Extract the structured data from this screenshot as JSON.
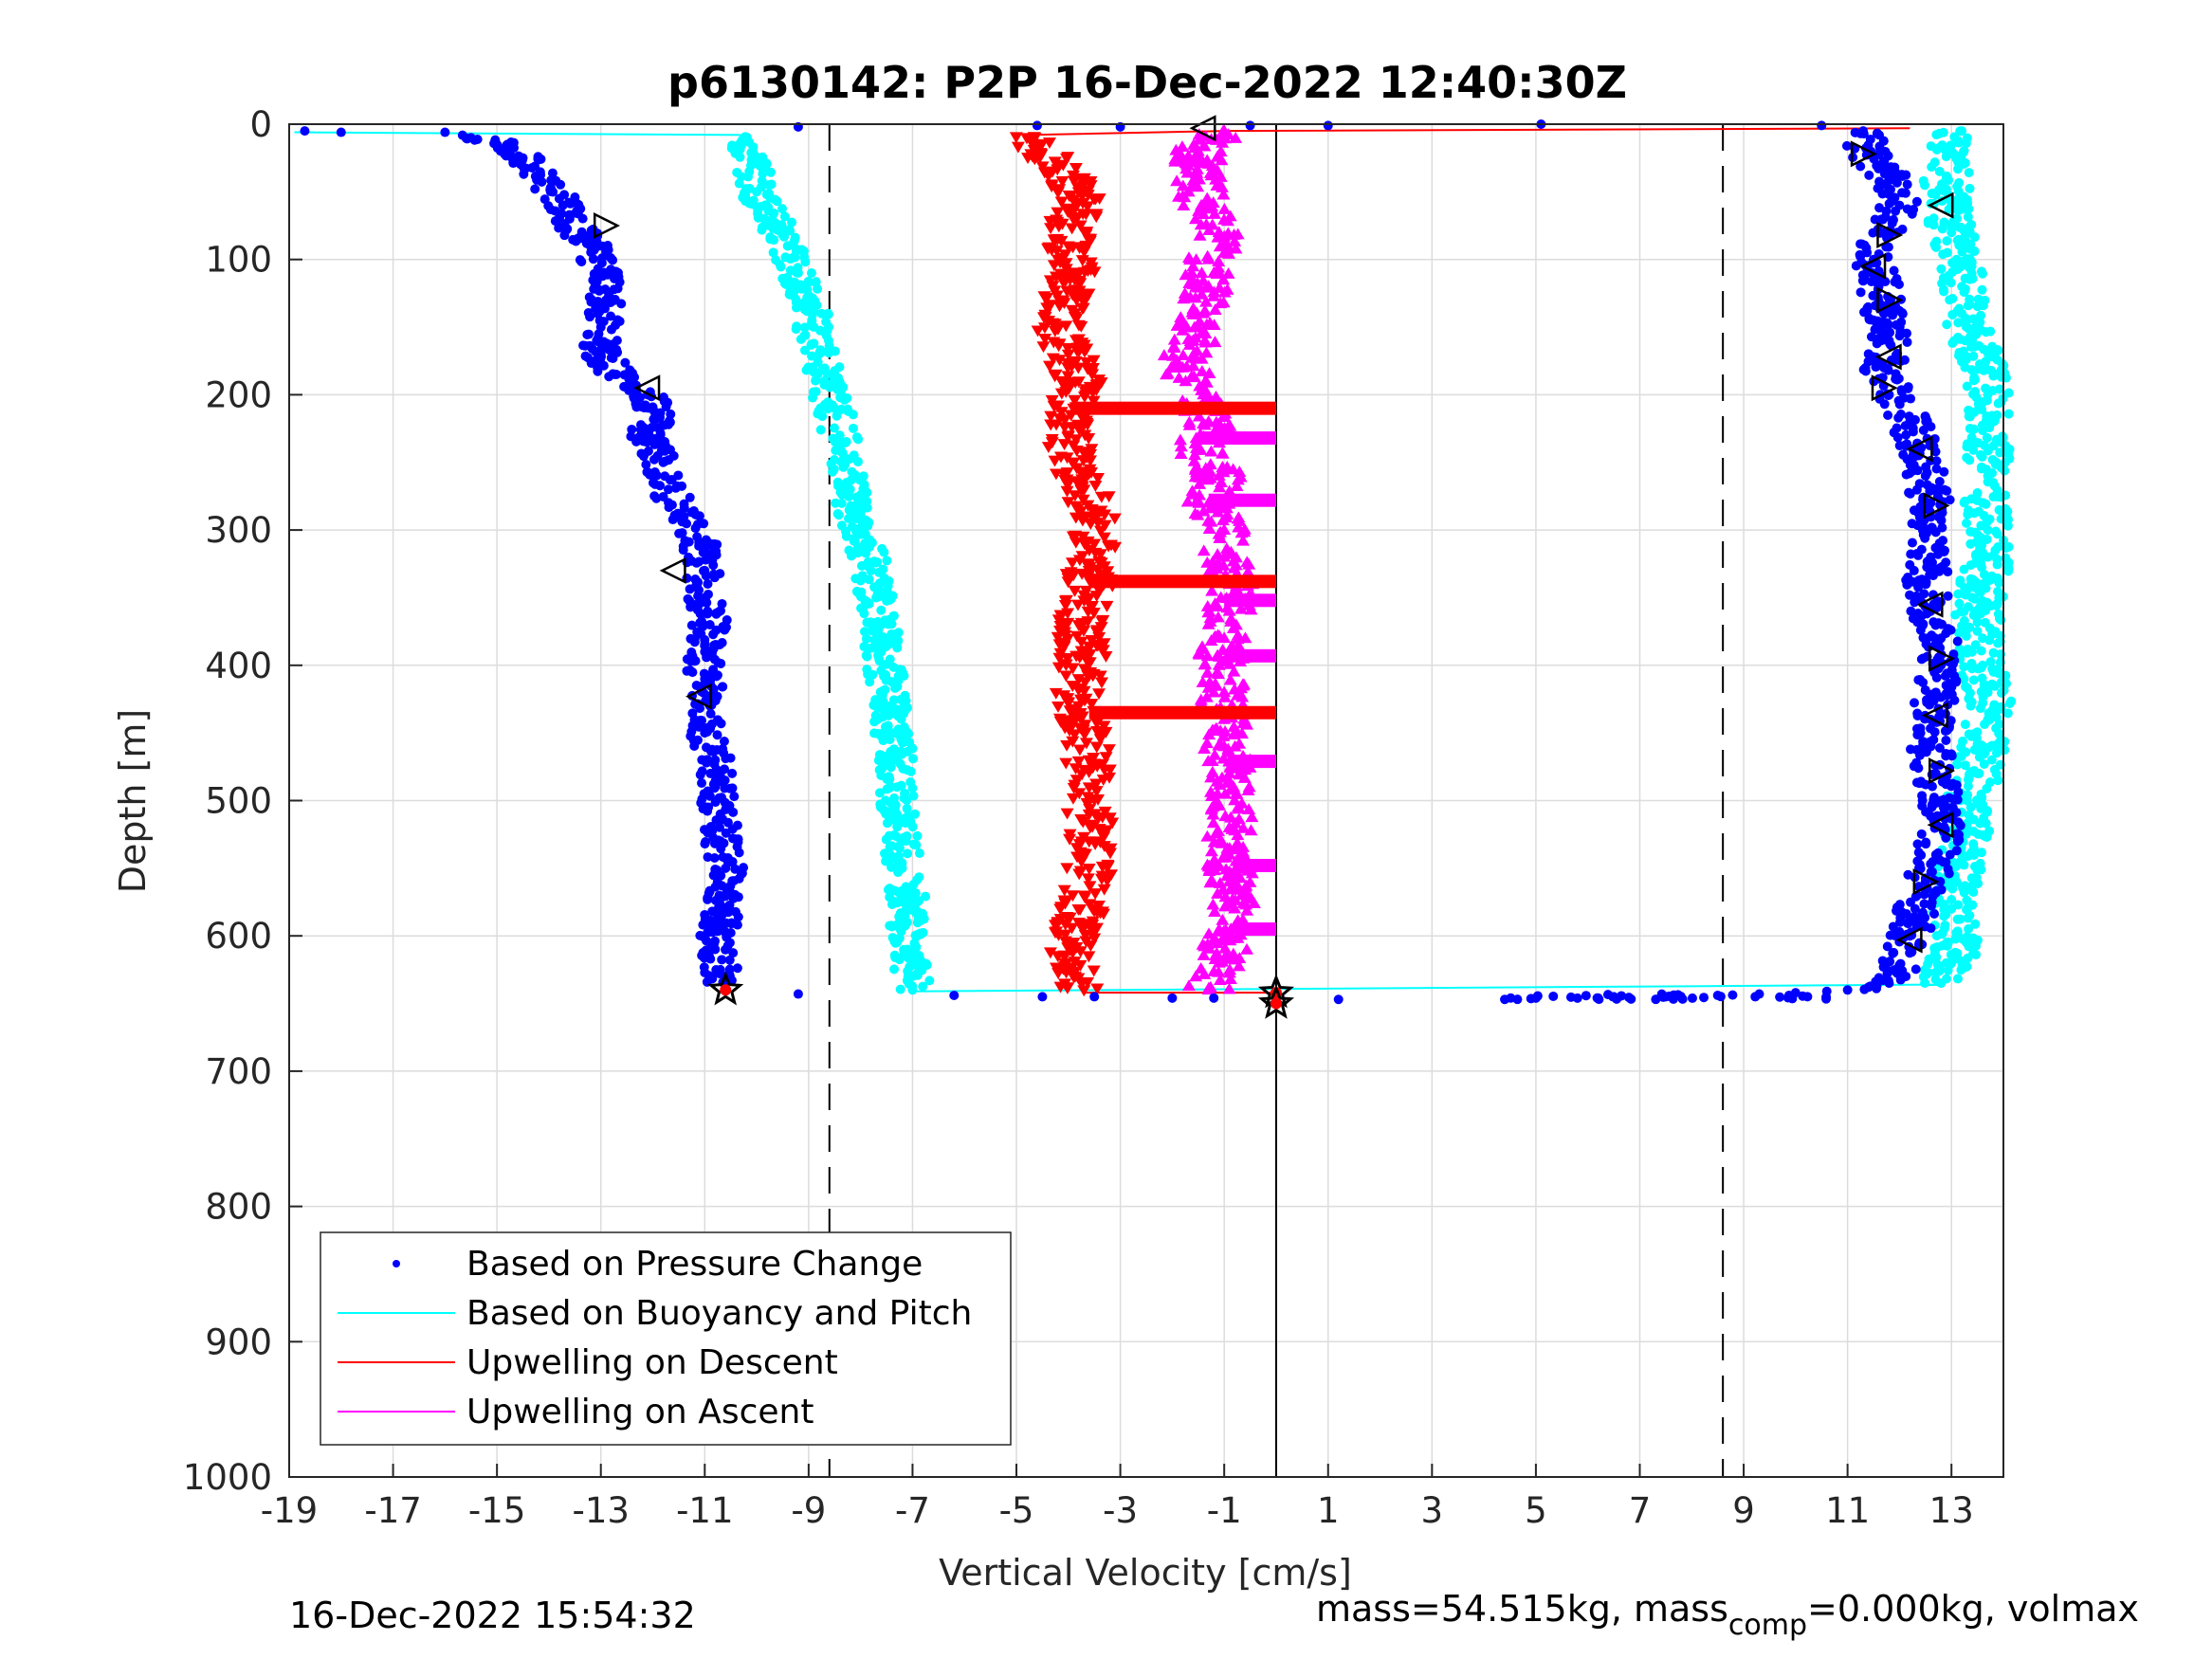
{
  "chart_data": {
    "type": "scatter",
    "title": "p6130142: P2P 16-Dec-2022 12:40:30Z",
    "xlabel": "Vertical Velocity [cm/s]",
    "ylabel": "Depth [m]",
    "xlim": [
      -19,
      14
    ],
    "ylim": [
      0,
      1000
    ],
    "y_reversed": true,
    "grid": true,
    "x_ticks": [
      -19,
      -17,
      -15,
      -13,
      -11,
      -9,
      -7,
      -5,
      -3,
      -1,
      1,
      3,
      5,
      7,
      9,
      11,
      13
    ],
    "y_ticks": [
      0,
      100,
      200,
      300,
      400,
      500,
      600,
      700,
      800,
      900,
      1000
    ],
    "x_tick_labels": [
      "-19",
      "-17",
      "-15",
      "-13",
      "-11",
      "-9",
      "-7",
      "-5",
      "-3",
      "-1",
      "1",
      "3",
      "5",
      "7",
      "9",
      "11",
      "13"
    ],
    "y_tick_labels": [
      "0",
      "100",
      "200",
      "300",
      "400",
      "500",
      "600",
      "700",
      "800",
      "900",
      "1000"
    ],
    "reference_lines": {
      "dashed_x": [
        -8.6,
        8.6
      ],
      "solid_x": 0
    },
    "legend": {
      "placement": "bottom-left",
      "entries": [
        {
          "label": "Based on Pressure Change",
          "color": "#0000ff",
          "style": "dot"
        },
        {
          "label": "Based on Buoyancy and Pitch",
          "color": "#00ffff",
          "style": "line"
        },
        {
          "label": "Upwelling on Descent",
          "color": "#ff0000",
          "style": "line"
        },
        {
          "label": "Upwelling on Ascent",
          "color": "#ff00ff",
          "style": "line"
        }
      ]
    },
    "series": [
      {
        "key": "pressure_descent",
        "color": "#0000ff",
        "marker": "dot",
        "points": [
          [
            -18.7,
            5
          ],
          [
            -18.0,
            6
          ],
          [
            -16.0,
            6
          ],
          [
            -15.5,
            10
          ],
          [
            -14.8,
            15
          ],
          [
            -14.5,
            25
          ],
          [
            -14.2,
            40
          ],
          [
            -13.8,
            55
          ],
          [
            -13.6,
            70
          ],
          [
            -13.2,
            90
          ],
          [
            -13.0,
            110
          ],
          [
            -12.9,
            130
          ],
          [
            -13.0,
            150
          ],
          [
            -13.0,
            170
          ],
          [
            -12.7,
            185
          ],
          [
            -12.1,
            200
          ],
          [
            -11.9,
            215
          ],
          [
            -12.2,
            230
          ],
          [
            -11.8,
            250
          ],
          [
            -11.7,
            270
          ],
          [
            -11.4,
            290
          ],
          [
            -11.1,
            310
          ],
          [
            -11.0,
            330
          ],
          [
            -11.0,
            350
          ],
          [
            -10.9,
            370
          ],
          [
            -11.0,
            390
          ],
          [
            -11.0,
            410
          ],
          [
            -10.9,
            430
          ],
          [
            -11.0,
            450
          ],
          [
            -10.8,
            470
          ],
          [
            -10.8,
            490
          ],
          [
            -10.7,
            510
          ],
          [
            -10.7,
            530
          ],
          [
            -10.6,
            550
          ],
          [
            -10.6,
            570
          ],
          [
            -10.7,
            590
          ],
          [
            -10.8,
            610
          ],
          [
            -10.7,
            625
          ],
          [
            -10.6,
            640
          ]
        ]
      },
      {
        "key": "pressure_ascent",
        "color": "#0000ff",
        "marker": "dot",
        "points": [
          [
            11.0,
            640
          ],
          [
            11.8,
            635
          ],
          [
            12.0,
            625
          ],
          [
            12.2,
            600
          ],
          [
            12.3,
            580
          ],
          [
            12.5,
            560
          ],
          [
            12.7,
            540
          ],
          [
            12.8,
            520
          ],
          [
            12.8,
            500
          ],
          [
            12.7,
            480
          ],
          [
            12.6,
            460
          ],
          [
            12.6,
            440
          ],
          [
            12.7,
            420
          ],
          [
            12.8,
            400
          ],
          [
            12.8,
            380
          ],
          [
            12.6,
            360
          ],
          [
            12.5,
            340
          ],
          [
            12.6,
            320
          ],
          [
            12.5,
            300
          ],
          [
            12.6,
            280
          ],
          [
            12.5,
            260
          ],
          [
            12.4,
            240
          ],
          [
            12.2,
            220
          ],
          [
            11.8,
            200
          ],
          [
            11.7,
            180
          ],
          [
            11.8,
            160
          ],
          [
            11.7,
            140
          ],
          [
            11.6,
            120
          ],
          [
            11.5,
            100
          ],
          [
            11.7,
            80
          ],
          [
            12.0,
            60
          ],
          [
            11.8,
            40
          ],
          [
            11.4,
            20
          ],
          [
            11.3,
            5
          ]
        ]
      },
      {
        "key": "pressure_bottom_transition",
        "color": "#0000ff",
        "marker": "dot",
        "points": [
          [
            -9.2,
            643
          ],
          [
            -6.2,
            644
          ],
          [
            -4.5,
            645
          ],
          [
            -3.5,
            645
          ],
          [
            -2.0,
            646
          ],
          [
            -1.2,
            646
          ],
          [
            1.2,
            647
          ],
          [
            4.4,
            647
          ],
          [
            5.0,
            646
          ],
          [
            5.8,
            646
          ],
          [
            6.5,
            645
          ],
          [
            7.5,
            645
          ],
          [
            8.5,
            644
          ],
          [
            9.3,
            643
          ],
          [
            10.0,
            642
          ],
          [
            10.6,
            641
          ]
        ]
      },
      {
        "key": "pressure_surface_transition",
        "color": "#0000ff",
        "marker": "dot",
        "points": [
          [
            -9.2,
            2
          ],
          [
            -4.6,
            1
          ],
          [
            -3.0,
            2
          ],
          [
            -0.5,
            1
          ],
          [
            1.0,
            1
          ],
          [
            5.1,
            0
          ],
          [
            10.5,
            1
          ]
        ]
      },
      {
        "key": "buoyancy_descent",
        "color": "#00ffff",
        "marker": "dot",
        "points": [
          [
            -10.2,
            10
          ],
          [
            -10.1,
            30
          ],
          [
            -10.0,
            50
          ],
          [
            -9.7,
            70
          ],
          [
            -9.4,
            90
          ],
          [
            -9.2,
            110
          ],
          [
            -9.0,
            130
          ],
          [
            -8.9,
            150
          ],
          [
            -8.8,
            170
          ],
          [
            -8.7,
            190
          ],
          [
            -8.5,
            210
          ],
          [
            -8.4,
            230
          ],
          [
            -8.3,
            250
          ],
          [
            -8.2,
            270
          ],
          [
            -8.1,
            290
          ],
          [
            -7.9,
            310
          ],
          [
            -7.8,
            330
          ],
          [
            -7.7,
            350
          ],
          [
            -7.6,
            370
          ],
          [
            -7.6,
            390
          ],
          [
            -7.5,
            410
          ],
          [
            -7.4,
            430
          ],
          [
            -7.4,
            450
          ],
          [
            -7.3,
            470
          ],
          [
            -7.3,
            490
          ],
          [
            -7.3,
            510
          ],
          [
            -7.2,
            530
          ],
          [
            -7.2,
            550
          ],
          [
            -7.1,
            570
          ],
          [
            -7.1,
            590
          ],
          [
            -7.1,
            610
          ],
          [
            -7.0,
            630
          ],
          [
            -7.0,
            640
          ]
        ]
      },
      {
        "key": "buoyancy_ascent",
        "color": "#00ffff",
        "marker": "dot",
        "points": [
          [
            12.8,
            635
          ],
          [
            13.0,
            620
          ],
          [
            13.1,
            600
          ],
          [
            13.0,
            580
          ],
          [
            13.1,
            560
          ],
          [
            13.2,
            540
          ],
          [
            13.3,
            520
          ],
          [
            13.3,
            500
          ],
          [
            13.5,
            480
          ],
          [
            13.6,
            460
          ],
          [
            13.7,
            440
          ],
          [
            13.7,
            420
          ],
          [
            13.6,
            400
          ],
          [
            13.6,
            380
          ],
          [
            13.5,
            360
          ],
          [
            13.6,
            340
          ],
          [
            13.7,
            320
          ],
          [
            13.7,
            300
          ],
          [
            13.6,
            280
          ],
          [
            13.7,
            260
          ],
          [
            13.7,
            240
          ],
          [
            13.8,
            220
          ],
          [
            13.7,
            200
          ],
          [
            13.6,
            180
          ],
          [
            13.4,
            160
          ],
          [
            13.2,
            140
          ],
          [
            13.2,
            120
          ],
          [
            13.1,
            100
          ],
          [
            13.0,
            80
          ],
          [
            13.0,
            60
          ],
          [
            12.9,
            40
          ],
          [
            12.9,
            20
          ],
          [
            13.2,
            5
          ]
        ]
      },
      {
        "key": "upwelling_descent",
        "color": "#ff0000",
        "marker": "triangle-down",
        "points": [
          [
            -4.8,
            10
          ],
          [
            -4.2,
            30
          ],
          [
            -3.8,
            50
          ],
          [
            -3.9,
            70
          ],
          [
            -4.0,
            90
          ],
          [
            -3.9,
            110
          ],
          [
            -4.1,
            130
          ],
          [
            -4.2,
            150
          ],
          [
            -4.0,
            170
          ],
          [
            -3.8,
            190
          ],
          [
            -3.9,
            210
          ],
          [
            -4.0,
            230
          ],
          [
            -3.9,
            250
          ],
          [
            -3.7,
            270
          ],
          [
            -3.5,
            290
          ],
          [
            -3.5,
            310
          ],
          [
            -3.6,
            330
          ],
          [
            -3.6,
            350
          ],
          [
            -3.8,
            370
          ],
          [
            -3.7,
            390
          ],
          [
            -3.8,
            410
          ],
          [
            -3.8,
            430
          ],
          [
            -3.7,
            450
          ],
          [
            -3.6,
            470
          ],
          [
            -3.6,
            490
          ],
          [
            -3.6,
            510
          ],
          [
            -3.6,
            530
          ],
          [
            -3.6,
            550
          ],
          [
            -3.7,
            570
          ],
          [
            -3.8,
            590
          ],
          [
            -3.9,
            610
          ],
          [
            -3.9,
            630
          ],
          [
            -3.7,
            640
          ]
        ]
      },
      {
        "key": "upwelling_ascent",
        "color": "#ff00ff",
        "marker": "triangle-up",
        "points": [
          [
            -1.3,
            640
          ],
          [
            -1.1,
            620
          ],
          [
            -0.9,
            600
          ],
          [
            -0.8,
            580
          ],
          [
            -0.9,
            560
          ],
          [
            -0.9,
            540
          ],
          [
            -0.9,
            520
          ],
          [
            -0.8,
            500
          ],
          [
            -0.9,
            480
          ],
          [
            -1.0,
            460
          ],
          [
            -1.0,
            440
          ],
          [
            -1.0,
            420
          ],
          [
            -1.1,
            400
          ],
          [
            -1.0,
            380
          ],
          [
            -0.9,
            360
          ],
          [
            -0.9,
            340
          ],
          [
            -1.0,
            320
          ],
          [
            -1.0,
            300
          ],
          [
            -1.3,
            280
          ],
          [
            -1.1,
            260
          ],
          [
            -1.5,
            240
          ],
          [
            -1.3,
            220
          ],
          [
            -1.4,
            200
          ],
          [
            -1.8,
            180
          ],
          [
            -1.6,
            160
          ],
          [
            -1.4,
            140
          ],
          [
            -1.3,
            120
          ],
          [
            -1.3,
            100
          ],
          [
            -1.1,
            80
          ],
          [
            -1.4,
            60
          ],
          [
            -1.5,
            40
          ],
          [
            -1.5,
            20
          ],
          [
            -1.0,
            5
          ]
        ]
      },
      {
        "key": "bar_segments_descent",
        "color": "#ff0000",
        "segments": [
          [
            -3.9,
            0.0,
            210
          ],
          [
            -3.6,
            0.0,
            338
          ],
          [
            -3.6,
            0.0,
            435
          ]
        ]
      },
      {
        "key": "bar_segments_ascent",
        "color": "#ff00ff",
        "segments": [
          [
            -1.5,
            0.0,
            232
          ],
          [
            -1.3,
            0.0,
            278
          ],
          [
            -1.0,
            0.0,
            352
          ],
          [
            -1.0,
            0.0,
            393
          ],
          [
            -0.9,
            0.0,
            471
          ],
          [
            -0.8,
            0.0,
            548
          ],
          [
            -0.8,
            0.0,
            595
          ]
        ]
      },
      {
        "key": "open_triangle_markers",
        "color": "#000000",
        "points": [
          [
            -12.9,
            75,
            "r"
          ],
          [
            -12.1,
            195,
            "l"
          ],
          [
            -11.6,
            330,
            "l"
          ],
          [
            -11.1,
            423,
            "l"
          ],
          [
            -1.4,
            3,
            "l"
          ],
          [
            11.3,
            22,
            "r"
          ],
          [
            12.8,
            60,
            "l"
          ],
          [
            11.8,
            82,
            "r"
          ],
          [
            11.5,
            105,
            "l"
          ],
          [
            11.8,
            130,
            "r"
          ],
          [
            11.8,
            172,
            "l"
          ],
          [
            11.7,
            195,
            "r"
          ],
          [
            12.4,
            240,
            "l"
          ],
          [
            12.7,
            282,
            "r"
          ],
          [
            12.6,
            355,
            "l"
          ],
          [
            12.8,
            395,
            "r"
          ],
          [
            12.7,
            437,
            "l"
          ],
          [
            12.8,
            478,
            "r"
          ],
          [
            12.8,
            518,
            "l"
          ],
          [
            12.5,
            560,
            "r"
          ],
          [
            12.2,
            603,
            "l"
          ]
        ]
      },
      {
        "key": "star_markers",
        "color": "#000000",
        "points": [
          [
            -10.6,
            640
          ],
          [
            0.0,
            642
          ],
          [
            0.0,
            650
          ]
        ]
      }
    ]
  },
  "footer": {
    "timestamp": "16-Dec-2022 15:54:32",
    "mass_text_1": "mass=54.515kg, mass",
    "mass_subscript": "comp",
    "mass_text_2": "=0.000kg, volmax"
  }
}
